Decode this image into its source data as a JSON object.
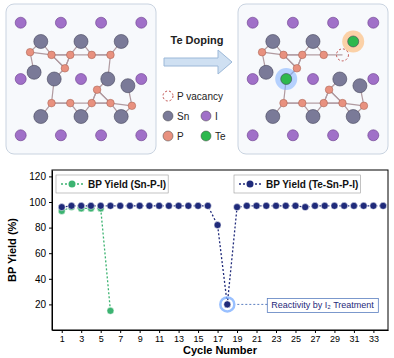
{
  "chart_data": {
    "type": "line",
    "x": [
      1,
      2,
      3,
      4,
      5,
      6,
      7,
      8,
      9,
      10,
      11,
      12,
      13,
      14,
      15,
      16,
      17,
      18,
      19,
      20,
      21,
      22,
      23,
      24,
      25,
      26,
      27,
      28,
      29,
      30,
      31,
      32,
      33,
      34
    ],
    "xlabel": "Cycle Number",
    "ylabel": "BP Yield (%)",
    "xlim": [
      0,
      34.5
    ],
    "xticks": [
      1,
      3,
      5,
      7,
      9,
      11,
      13,
      15,
      17,
      19,
      21,
      23,
      25,
      27,
      29,
      31,
      33
    ],
    "ylim": [
      0,
      125
    ],
    "yticks": [
      20,
      40,
      60,
      80,
      100,
      120
    ],
    "legend": "top",
    "series": [
      {
        "name": "BP Yield (Sn-P-I)",
        "color": "#3cb371",
        "marker": "circle",
        "line_style": "dotted",
        "values": [
          93,
          96,
          95,
          95,
          95,
          15,
          null,
          null,
          null,
          null,
          null,
          null,
          null,
          null,
          null,
          null,
          null,
          null,
          null,
          null,
          null,
          null,
          null,
          null,
          null,
          null,
          null,
          null,
          null,
          null,
          null,
          null,
          null,
          null
        ]
      },
      {
        "name": "BP Yield (Te-Sn-P-I)",
        "color": "#1f2a7a",
        "marker": "circle",
        "line_style": "dotted",
        "values": [
          96,
          97,
          97,
          97,
          97,
          97,
          97,
          97,
          97,
          97,
          97,
          97,
          97,
          97,
          97,
          97,
          82,
          20,
          96,
          97,
          97,
          97,
          97,
          97,
          97,
          96,
          97,
          97,
          97,
          97,
          97,
          97,
          97,
          97
        ]
      }
    ],
    "annotations": [
      {
        "text": "Reactivity by I₂ Treatment",
        "x": 18,
        "y": 20
      }
    ]
  },
  "diagram": {
    "arrow_label": "Te Doping",
    "legend": [
      {
        "label": "P vacancy",
        "color": "#c0504d"
      },
      {
        "label": "Sn",
        "color": "#7a7a98"
      },
      {
        "label": "I",
        "color": "#a070c8"
      },
      {
        "label": "P",
        "color": "#e8917f"
      },
      {
        "label": "Te",
        "color": "#2db84d"
      }
    ]
  }
}
